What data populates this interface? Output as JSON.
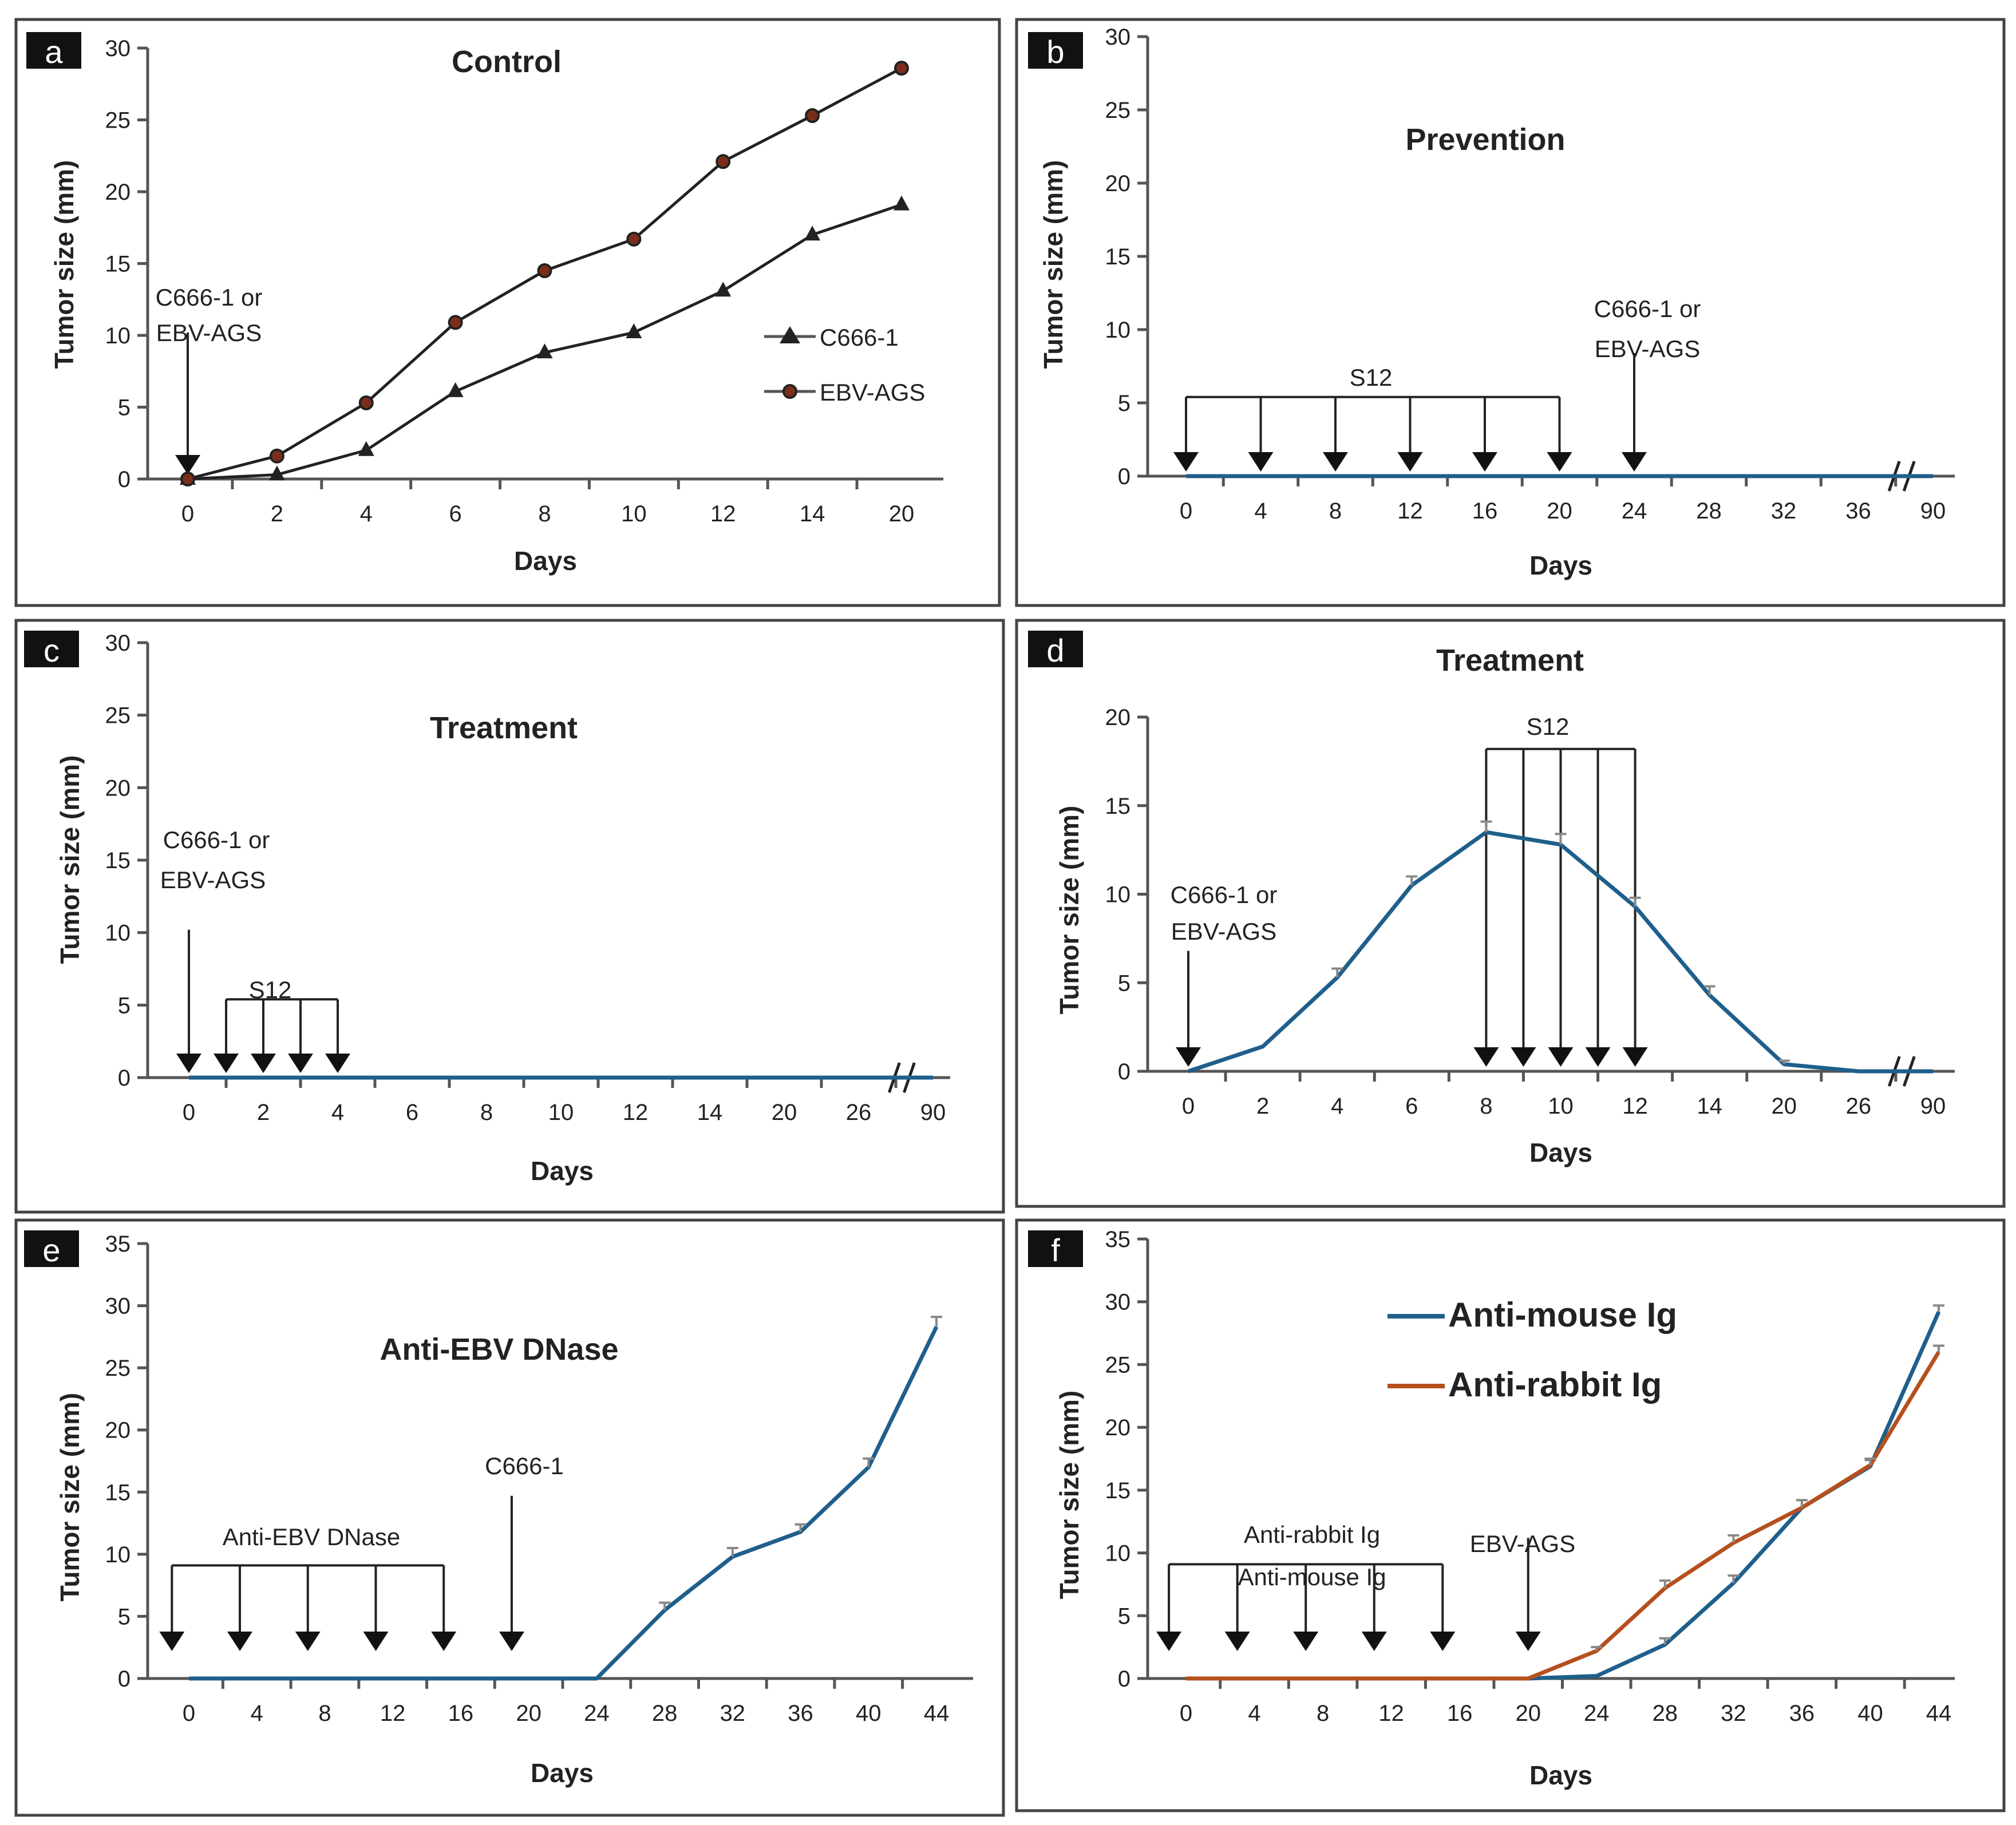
{
  "colors": {
    "blue": "#1f5f8b",
    "orange": "#b5501e",
    "black": "#222222",
    "marker_fill": "#7a2e1a"
  },
  "chart_data": [
    {
      "panel": "a",
      "type": "line",
      "title": "Control",
      "xlabel": "Days",
      "ylabel": "Tumor size (mm)",
      "categories": [
        "0",
        "2",
        "4",
        "6",
        "8",
        "10",
        "12",
        "14",
        "20"
      ],
      "ylim": [
        0,
        30
      ],
      "yticks": [
        0,
        5,
        10,
        15,
        20,
        25,
        30
      ],
      "legend_placement": "right",
      "series": [
        {
          "name": "C666-1",
          "marker": "triangle",
          "color": "#222222",
          "values": [
            0,
            0.3,
            2,
            6.1,
            8.8,
            10.2,
            13.1,
            17,
            19.1
          ]
        },
        {
          "name": "EBV-AGS",
          "marker": "circle",
          "color": "#222222",
          "values": [
            0,
            1.6,
            5.3,
            10.9,
            14.5,
            16.7,
            22.1,
            25.3,
            28.6
          ]
        }
      ],
      "annotations": [
        {
          "text": [
            "C666-1 or",
            "EBV-AGS"
          ],
          "arrow_x": [
            "0"
          ]
        }
      ]
    },
    {
      "panel": "b",
      "type": "line",
      "title": "Prevention",
      "xlabel": "Days",
      "ylabel": "Tumor size (mm)",
      "categories": [
        "0",
        "4",
        "8",
        "12",
        "16",
        "20",
        "24",
        "28",
        "32",
        "36",
        "90"
      ],
      "axis_break_before": "90",
      "ylim": [
        0,
        30
      ],
      "yticks": [
        0,
        5,
        10,
        15,
        20,
        25,
        30
      ],
      "series": [
        {
          "name": "S12",
          "color": "#1f5f8b",
          "values": [
            0,
            0,
            0,
            0,
            0,
            0,
            0,
            0,
            0,
            0,
            0
          ]
        }
      ],
      "annotations": [
        {
          "text": [
            "S12"
          ],
          "arrow_x": [
            "0",
            "4",
            "8",
            "12",
            "16",
            "20"
          ],
          "bracket": true
        },
        {
          "text": [
            "C666-1 or",
            "EBV-AGS"
          ],
          "arrow_x": [
            "24"
          ]
        }
      ]
    },
    {
      "panel": "c",
      "type": "line",
      "title": "Treatment",
      "xlabel": "Days",
      "ylabel": "Tumor size (mm)",
      "categories": [
        "0",
        "2",
        "4",
        "6",
        "8",
        "10",
        "12",
        "14",
        "20",
        "26",
        "90"
      ],
      "axis_break_before": "90",
      "ylim": [
        0,
        30
      ],
      "yticks": [
        0,
        5,
        10,
        15,
        20,
        25,
        30
      ],
      "series": [
        {
          "name": "S12",
          "color": "#1f5f8b",
          "values": [
            0,
            0,
            0,
            0,
            0,
            0,
            0,
            0,
            0,
            0,
            0
          ]
        }
      ],
      "annotations": [
        {
          "text": [
            "C666-1 or",
            "EBV-AGS"
          ],
          "arrow_x": [
            "0"
          ]
        },
        {
          "text": [
            "S12"
          ],
          "arrow_x": [
            "1",
            "2",
            "3",
            "4"
          ],
          "bracket": true
        }
      ]
    },
    {
      "panel": "d",
      "type": "line",
      "title": "Treatment",
      "xlabel": "Days",
      "ylabel": "Tumor size (mm)",
      "categories": [
        "0",
        "2",
        "4",
        "6",
        "8",
        "10",
        "12",
        "14",
        "20",
        "26",
        "90"
      ],
      "axis_break_before": "90",
      "ylim": [
        0,
        20
      ],
      "yticks": [
        0,
        5,
        10,
        15,
        20
      ],
      "series": [
        {
          "name": "S12",
          "color": "#1f5f8b",
          "values": [
            0,
            1.4,
            5.3,
            10.5,
            13.5,
            12.8,
            9.3,
            4.3,
            0.4,
            0,
            0
          ],
          "errors": [
            0,
            0,
            0.5,
            0.5,
            0.6,
            0.6,
            0.5,
            0.5,
            0.2,
            0,
            0
          ]
        }
      ],
      "annotations": [
        {
          "text": [
            "C666-1 or",
            "EBV-AGS"
          ],
          "arrow_x": [
            "0"
          ]
        },
        {
          "text": [
            "S12"
          ],
          "arrow_x": [
            "8",
            "9",
            "10",
            "11",
            "12"
          ],
          "bracket": true
        }
      ]
    },
    {
      "panel": "e",
      "type": "line",
      "title": "Anti-EBV DNase",
      "xlabel": "Days",
      "ylabel": "Tumor size (mm)",
      "categories": [
        "0",
        "4",
        "8",
        "12",
        "16",
        "20",
        "24",
        "28",
        "32",
        "36",
        "40",
        "44"
      ],
      "ylim": [
        0,
        35
      ],
      "yticks": [
        0,
        5,
        10,
        15,
        20,
        25,
        30,
        35
      ],
      "series": [
        {
          "name": "Anti-EBV DNase",
          "color": "#1f5f8b",
          "values": [
            0,
            0,
            0,
            0,
            0,
            0,
            0,
            5.5,
            9.8,
            11.8,
            17,
            28.3
          ],
          "errors": [
            0,
            0,
            0,
            0,
            0,
            0,
            0,
            0.6,
            0.7,
            0.6,
            0.7,
            0.8
          ]
        }
      ],
      "annotations": [
        {
          "text": [
            "Anti-EBV DNase"
          ],
          "arrow_x": [
            "-1",
            "3",
            "7",
            "11",
            "15"
          ],
          "bracket": true
        },
        {
          "text": [
            "C666-1"
          ],
          "arrow_x": [
            "19"
          ]
        }
      ]
    },
    {
      "panel": "f",
      "type": "line",
      "title": "",
      "xlabel": "Days",
      "ylabel": "Tumor size (mm)",
      "categories": [
        "0",
        "4",
        "8",
        "12",
        "16",
        "20",
        "24",
        "28",
        "32",
        "36",
        "40",
        "44"
      ],
      "ylim": [
        0,
        35
      ],
      "yticks": [
        0,
        5,
        10,
        15,
        20,
        25,
        30,
        35
      ],
      "legend_placement": "top-center",
      "series": [
        {
          "name": "Anti-mouse Ig",
          "color": "#1f5f8b",
          "values": [
            0,
            0,
            0,
            0,
            0,
            0,
            0.2,
            2.7,
            7.6,
            13.6,
            16.9,
            29.2
          ],
          "errors": [
            0,
            0,
            0,
            0,
            0,
            0,
            0,
            0.5,
            0.6,
            0.6,
            0.5,
            0.5
          ]
        },
        {
          "name": "Anti-rabbit Ig",
          "color": "#b5501e",
          "values": [
            0,
            0,
            0,
            0,
            0,
            0,
            2.2,
            7.2,
            10.8,
            13.6,
            17,
            26
          ],
          "errors": [
            0,
            0,
            0,
            0,
            0,
            0,
            0.3,
            0.6,
            0.6,
            0.6,
            0.5,
            0.5
          ]
        }
      ],
      "annotations": [
        {
          "text": [
            "Anti-rabbit Ig",
            "Anti-mouse Ig"
          ],
          "arrow_x": [
            "-1",
            "3",
            "7",
            "11",
            "15"
          ],
          "bracket": true
        },
        {
          "text": [
            "EBV-AGS"
          ],
          "arrow_x": [
            "20"
          ]
        }
      ]
    }
  ]
}
